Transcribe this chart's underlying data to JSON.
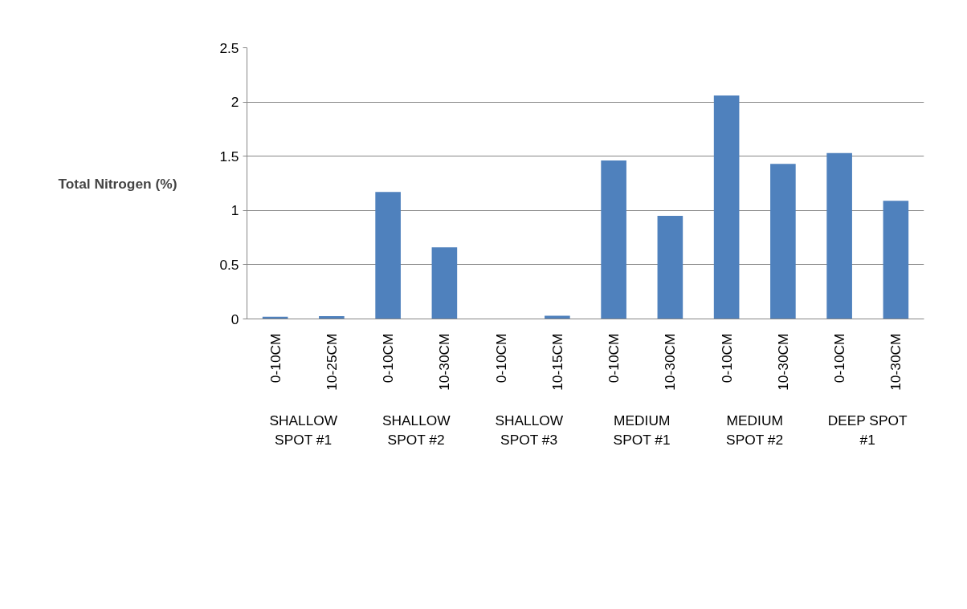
{
  "chart_data": {
    "type": "bar",
    "ylabel": "Total Nitrogen (%)",
    "categories": [
      "0-10CM",
      "10-25CM",
      "0-10CM",
      "10-30CM",
      "0-10CM",
      "10-15CM",
      "0-10CM",
      "10-30CM",
      "0-10CM",
      "10-30CM",
      "0-10CM",
      "10-30CM"
    ],
    "values": [
      0.02,
      0.025,
      1.17,
      0.66,
      0,
      0.03,
      1.46,
      0.95,
      2.06,
      1.43,
      1.53,
      1.09
    ],
    "color": "#4f81bd",
    "annotations": [
      "SHALLOW SPOT #1",
      "SHALLOW SPOT #2",
      "SHALLOW SPOT #3",
      "MEDIUM SPOT #1",
      "MEDIUM SPOT #2",
      "DEEP SPOT #1"
    ],
    "ylim": [
      0,
      2.5
    ],
    "yticks": [
      0,
      0.5,
      1,
      1.5,
      2,
      2.5
    ],
    "grid": "y"
  }
}
